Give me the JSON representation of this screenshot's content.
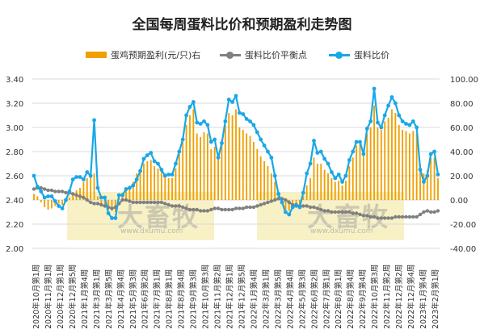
{
  "title": "全国每周蛋料比价和预期盈利走势图",
  "colors": {
    "bar": "#f0a000",
    "breakeven": "#808080",
    "ratio": "#1aa7e6"
  },
  "watermark": {
    "brand": "大畜牧",
    "site": "www.dxumu.com"
  },
  "legend": {
    "bar": "蛋鸡预期盈利(元/只)右",
    "breakeven": "蛋料比价平衡点",
    "ratio": "蛋料比价"
  },
  "chart_data": {
    "type": "bar+line",
    "title": "全国每周蛋料比价和预期盈利走势图",
    "left_axis": {
      "ylim": [
        2.0,
        3.4
      ],
      "ticks": [
        "2.00",
        "2.20",
        "2.40",
        "2.60",
        "2.80",
        "3.00",
        "3.20",
        "3.40"
      ]
    },
    "right_axis": {
      "ylim": [
        -40,
        100
      ],
      "ticks": [
        "-40.00",
        "-20.00",
        "0.00",
        "20.00",
        "40.00",
        "60.00",
        "80.00",
        "100.00"
      ]
    },
    "x_labels": [
      "2020年10月第1周",
      "2020年11月第1周",
      "2020年12月第1周",
      "2020年12月第5周",
      "2021年1月第4周",
      "2021年3月第1周",
      "2021年3月第5周",
      "2021年4月第4周",
      "2021年5月第3周",
      "2021年6月第2周",
      "2021年7月第1周",
      "2021年8月第1周",
      "2021年8月第4周",
      "2021年9月第3周",
      "2021年10月第3周",
      "2021年11月第2周",
      "2021年12月第1周",
      "2021年12月第5周",
      "2022年1月第4周",
      "2022年3月第1周",
      "2022年3月第5周",
      "2022年4月第4周",
      "2022年5月第3周",
      "2022年6月第2周",
      "2022年7月第1周",
      "2022年8月第1周",
      "2022年8月第4周",
      "2022年9月第4周",
      "2022年10月第3周",
      "2022年11月第2周",
      "2022年12月第2周",
      "2022年12月第4周",
      "2023年1月第4周",
      "2023年2月第1周"
    ],
    "series": [
      {
        "name": "蛋料比价",
        "axis": "left",
        "values": [
          2.6,
          2.51,
          2.47,
          2.42,
          2.43,
          2.43,
          2.39,
          2.35,
          2.33,
          2.4,
          2.47,
          2.57,
          2.59,
          2.59,
          2.57,
          2.63,
          2.6,
          3.06,
          2.5,
          2.42,
          2.42,
          2.29,
          2.25,
          2.25,
          2.44,
          2.44,
          2.49,
          2.5,
          2.52,
          2.57,
          2.64,
          2.74,
          2.77,
          2.79,
          2.72,
          2.7,
          2.65,
          2.6,
          2.61,
          2.61,
          2.7,
          2.8,
          2.9,
          3.1,
          3.17,
          3.21,
          3.04,
          3.03,
          3.05,
          3.02,
          2.88,
          2.9,
          2.75,
          2.87,
          3.05,
          3.23,
          3.21,
          3.26,
          3.12,
          3.11,
          3.07,
          3.05,
          3.02,
          2.96,
          2.9,
          2.85,
          2.8,
          2.75,
          2.6,
          2.45,
          2.38,
          2.3,
          2.28,
          2.34,
          2.36,
          2.34,
          2.46,
          2.62,
          2.7,
          2.89,
          2.79,
          2.8,
          2.74,
          2.7,
          2.63,
          2.58,
          2.61,
          2.55,
          2.6,
          2.73,
          2.8,
          2.88,
          2.88,
          2.78,
          2.99,
          3.05,
          3.32,
          3.04,
          3.0,
          3.1,
          3.18,
          3.25,
          3.2,
          3.1,
          3.05,
          3.03,
          3.02,
          3.05,
          3.0,
          2.65,
          2.55,
          2.6,
          2.78,
          2.8,
          2.61
        ]
      },
      {
        "name": "蛋料比价平衡点",
        "axis": "left",
        "values": [
          2.49,
          2.5,
          2.5,
          2.49,
          2.48,
          2.48,
          2.47,
          2.47,
          2.47,
          2.46,
          2.46,
          2.45,
          2.44,
          2.43,
          2.42,
          2.4,
          2.38,
          2.37,
          2.37,
          2.36,
          2.35,
          2.34,
          2.33,
          2.34,
          2.37,
          2.4,
          2.4,
          2.39,
          2.38,
          2.38,
          2.38,
          2.38,
          2.38,
          2.38,
          2.38,
          2.38,
          2.38,
          2.37,
          2.36,
          2.35,
          2.35,
          2.35,
          2.34,
          2.33,
          2.32,
          2.32,
          2.32,
          2.31,
          2.31,
          2.31,
          2.32,
          2.33,
          2.33,
          2.32,
          2.32,
          2.32,
          2.32,
          2.33,
          2.33,
          2.33,
          2.34,
          2.34,
          2.34,
          2.35,
          2.36,
          2.37,
          2.38,
          2.39,
          2.4,
          2.41,
          2.41,
          2.4,
          2.38,
          2.36,
          2.35,
          2.35,
          2.35,
          2.35,
          2.34,
          2.34,
          2.33,
          2.32,
          2.31,
          2.31,
          2.3,
          2.3,
          2.3,
          2.3,
          2.3,
          2.3,
          2.29,
          2.29,
          2.28,
          2.27,
          2.27,
          2.26,
          2.26,
          2.25,
          2.25,
          2.25,
          2.25,
          2.25,
          2.26,
          2.26,
          2.26,
          2.26,
          2.26,
          2.26,
          2.26,
          2.28,
          2.3,
          2.31,
          2.3,
          2.3,
          2.31
        ]
      },
      {
        "name": "蛋鸡预期盈利(元/只)右",
        "axis": "right",
        "values": [
          5,
          3,
          -2,
          -6,
          -8,
          -7,
          -5,
          -3,
          -4,
          -2,
          2,
          6,
          8,
          10,
          15,
          18,
          20,
          22,
          3,
          -5,
          -6,
          -8,
          -9,
          -10,
          5,
          6,
          10,
          12,
          15,
          22,
          25,
          30,
          32,
          33,
          28,
          26,
          24,
          22,
          18,
          18,
          26,
          38,
          48,
          62,
          70,
          75,
          55,
          52,
          56,
          55,
          42,
          44,
          36,
          50,
          62,
          72,
          70,
          75,
          60,
          58,
          55,
          53,
          48,
          42,
          36,
          32,
          28,
          22,
          15,
          5,
          -2,
          -8,
          -9,
          -5,
          -3,
          -4,
          3,
          12,
          18,
          35,
          30,
          30,
          25,
          22,
          18,
          15,
          16,
          12,
          16,
          28,
          35,
          45,
          46,
          38,
          55,
          60,
          78,
          60,
          58,
          65,
          68,
          75,
          72,
          62,
          58,
          57,
          55,
          57,
          55,
          30,
          22,
          25,
          35,
          35,
          18
        ]
      }
    ]
  }
}
